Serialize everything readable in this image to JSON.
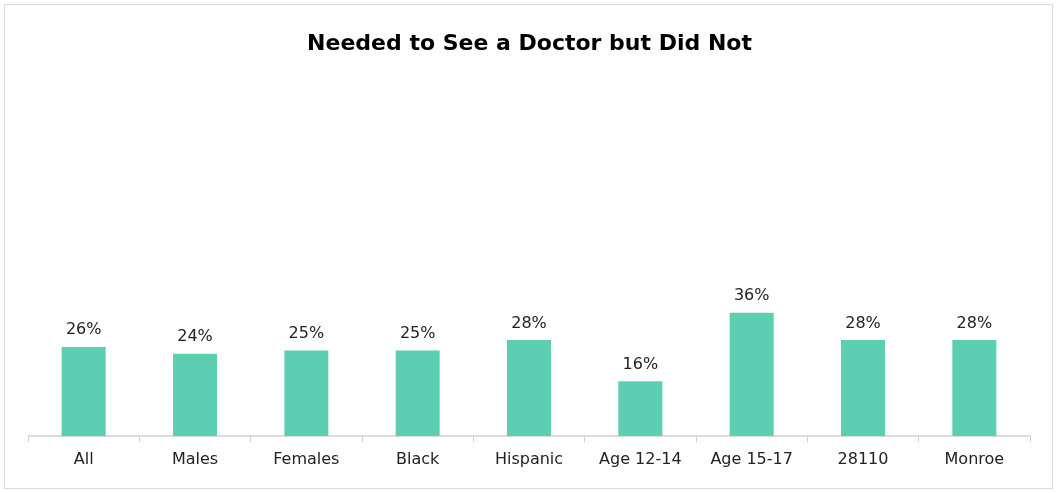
{
  "chart_data": {
    "type": "bar",
    "title": "Needed to See a Doctor but Did Not",
    "categories": [
      "All",
      "Males",
      "Females",
      "Black",
      "Hispanic",
      "Age 12-14",
      "Age 15-17",
      "28110",
      "Monroe"
    ],
    "values": [
      26,
      24,
      25,
      25,
      28,
      16,
      36,
      28,
      28
    ],
    "value_labels": [
      "26%",
      "24%",
      "25%",
      "25%",
      "28%",
      "16%",
      "36%",
      "28%",
      "28%"
    ],
    "color": "#5ccfb2"
  }
}
